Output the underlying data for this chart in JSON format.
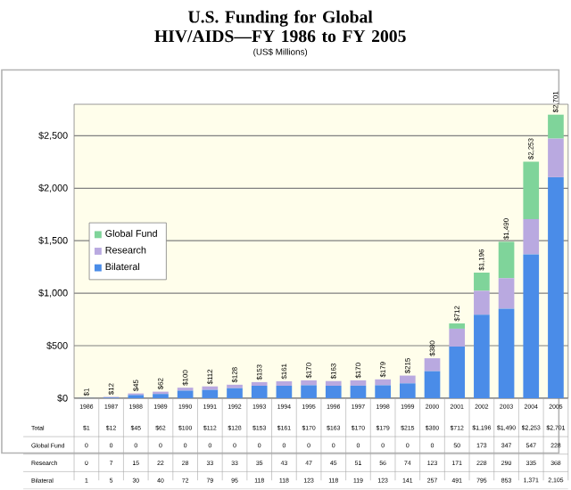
{
  "chart_data": {
    "type": "bar",
    "stacked": true,
    "title": "U.S. Funding for Global HIV/AIDS—FY 1986 to FY 2005",
    "subtitle": "(US$ Millions)",
    "categories": [
      "1986",
      "1987",
      "1988",
      "1989",
      "1990",
      "1991",
      "1992",
      "1993",
      "1994",
      "1995",
      "1996",
      "1997",
      "1998",
      "1999",
      "2000",
      "2001",
      "2002",
      "2003",
      "2004",
      "2005"
    ],
    "series": [
      {
        "name": "Bilateral",
        "color": "#4a8ce8",
        "values": [
          1,
          5,
          30,
          40,
          72,
          79,
          95,
          118,
          118,
          123,
          118,
          119,
          123,
          141,
          257,
          491,
          795,
          853,
          1371,
          2105
        ],
        "value_labels": [
          "1",
          "5",
          "30",
          "40",
          "72",
          "79",
          "95",
          "118",
          "118",
          "123",
          "118",
          "119",
          "123",
          "141",
          "257",
          "491",
          "795",
          "853",
          "1,371",
          "2,105"
        ]
      },
      {
        "name": "Research",
        "color": "#b9a9e0",
        "values": [
          0,
          7,
          15,
          22,
          28,
          33,
          33,
          35,
          43,
          47,
          45,
          51,
          56,
          74,
          123,
          171,
          228,
          290,
          335,
          368
        ],
        "value_labels": [
          "0",
          "7",
          "15",
          "22",
          "28",
          "33",
          "33",
          "35",
          "43",
          "47",
          "45",
          "51",
          "56",
          "74",
          "123",
          "171",
          "228",
          "290",
          "335",
          "368"
        ]
      },
      {
        "name": "Global Fund",
        "color": "#7fd49a",
        "values": [
          0,
          0,
          0,
          0,
          0,
          0,
          0,
          0,
          0,
          0,
          0,
          0,
          0,
          0,
          0,
          50,
          173,
          347,
          547,
          228
        ],
        "value_labels": [
          "0",
          "0",
          "0",
          "0",
          "0",
          "0",
          "0",
          "0",
          "0",
          "0",
          "0",
          "0",
          "0",
          "0",
          "0",
          "50",
          "173",
          "347",
          "547",
          "228"
        ]
      }
    ],
    "totals": [
      "$1",
      "$12",
      "$45",
      "$62",
      "$100",
      "$112",
      "$128",
      "$153",
      "$161",
      "$170",
      "$163",
      "$170",
      "$179",
      "$215",
      "$380",
      "$712",
      "$1,196",
      "$1,490",
      "$2,253",
      "$2,701"
    ],
    "annotations": [
      "Total"
    ],
    "ylim": [
      0,
      2800
    ],
    "yticks": [
      {
        "value": 0,
        "label": "$0"
      },
      {
        "value": 500,
        "label": "$500"
      },
      {
        "value": 1000,
        "label": "$1,000"
      },
      {
        "value": 1500,
        "label": "$1,500"
      },
      {
        "value": 2000,
        "label": "$2,000"
      },
      {
        "value": 2500,
        "label": "$2,500"
      }
    ],
    "grid": "y",
    "legend": "left"
  }
}
